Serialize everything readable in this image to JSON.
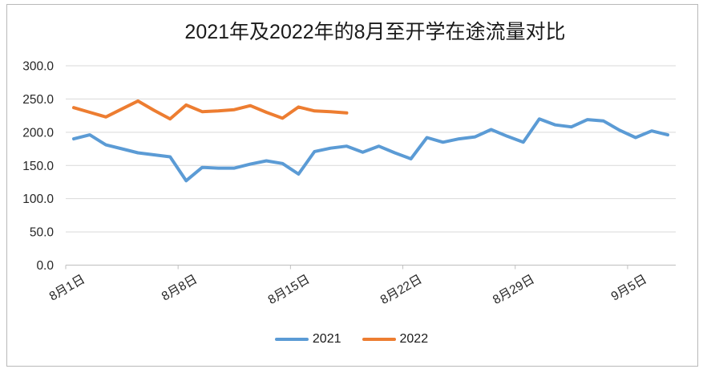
{
  "chart_data": {
    "type": "line",
    "title": "2021年及2022年的8月至开学在途流量对比",
    "xlabel": "",
    "ylabel": "",
    "x_axis": {
      "shown_tick_labels": [
        "8月1日",
        "8月8日",
        "8月15日",
        "8月22日",
        "8月29日",
        "9月5日"
      ],
      "tick_interval_days": 7,
      "total_categories": 38,
      "label_rotation_deg": -30
    },
    "ylim": [
      0,
      300
    ],
    "ytick_values": [
      300,
      250,
      200,
      150,
      100,
      50,
      0
    ],
    "ytick_labels": [
      "300.0",
      "250.0",
      "200.0",
      "150.0",
      "100.0",
      "50.0",
      "0.0"
    ],
    "grid": true,
    "legend_position": "bottom",
    "series": [
      {
        "name": "2021",
        "color": "#5B9BD5",
        "values": [
          190,
          196,
          181,
          175,
          169,
          166,
          163,
          127,
          147,
          146,
          146,
          152,
          157,
          153,
          137,
          171,
          176,
          179,
          170,
          179,
          169,
          160,
          192,
          185,
          190,
          193,
          204,
          194,
          185,
          220,
          211,
          208,
          219,
          217,
          203,
          192,
          202,
          196
        ]
      },
      {
        "name": "2022",
        "color": "#ED7D31",
        "values": [
          237,
          230,
          223,
          235,
          247,
          233,
          220,
          241,
          231,
          232,
          234,
          240,
          230,
          221,
          238,
          232,
          231,
          229
        ]
      }
    ]
  },
  "legend": {
    "items": [
      {
        "label": "2021",
        "color": "#5B9BD5"
      },
      {
        "label": "2022",
        "color": "#ED7D31"
      }
    ]
  },
  "style": {
    "gridline_color": "#D9D9D9",
    "axis_color": "#BFBFBF",
    "label_color": "#262626"
  }
}
